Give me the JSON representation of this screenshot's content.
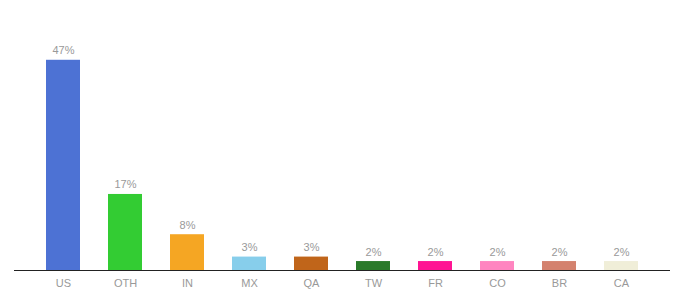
{
  "chart_data": {
    "type": "bar",
    "categories": [
      "US",
      "OTH",
      "IN",
      "MX",
      "QA",
      "TW",
      "FR",
      "CO",
      "BR",
      "CA"
    ],
    "values": [
      47,
      17,
      8,
      3,
      3,
      2,
      2,
      2,
      2,
      2
    ],
    "value_labels": [
      "47%",
      "17%",
      "8%",
      "3%",
      "3%",
      "2%",
      "2%",
      "2%",
      "2%",
      "2%"
    ],
    "colors": [
      "#4d72d4",
      "#33cc33",
      "#f5a623",
      "#87ceeb",
      "#c0651a",
      "#2a7a2a",
      "#ff1493",
      "#ff85c0",
      "#d4826e",
      "#f0eed8"
    ],
    "ylim": [
      0,
      55
    ],
    "data_labels": true,
    "grid": false,
    "tick_labels": "x"
  }
}
